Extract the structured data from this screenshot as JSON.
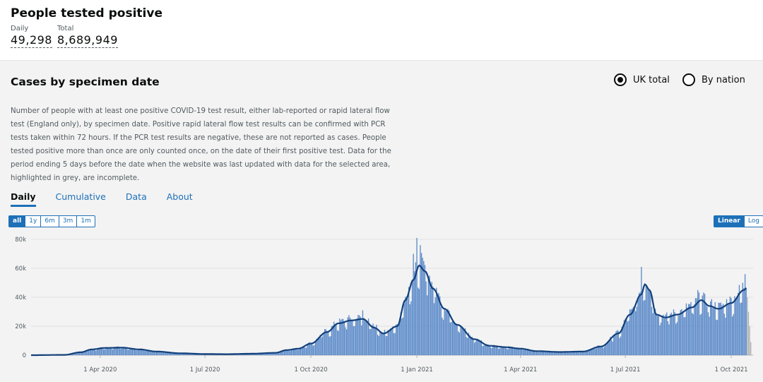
{
  "headline": {
    "title": "People tested positive",
    "daily_label": "Daily",
    "daily_value": "49,298",
    "total_label": "Total",
    "total_value": "8,689,949"
  },
  "card": {
    "title": "Cases by specimen date",
    "radio_uk": "UK total",
    "radio_nation": "By nation",
    "selected": "UK total",
    "description": "Number of people with at least one positive COVID-19 test result, either lab-reported or rapid lateral flow test (England only), by specimen date. Positive rapid lateral flow test results can be confirmed with PCR tests taken within 72 hours. If the PCR test results are negative, these are not reported as cases. People tested positive more than once are only counted once, on the date of their first positive test. Data for the period ending 5 days before the date when the website was last updated with data for the selected area, highlighted in grey, are incomplete.",
    "tabs": [
      "Daily",
      "Cumulative",
      "Data",
      "About"
    ],
    "active_tab": "Daily",
    "ranges": [
      "all",
      "1y",
      "6m",
      "3m",
      "1m"
    ],
    "active_range": "all",
    "scales": [
      "Linear",
      "Log"
    ],
    "active_scale": "Linear"
  },
  "colors": {
    "bar": "#5b8ac9",
    "bar_incomplete": "#b1b4b6",
    "line": "#12407a",
    "accent": "#1d70b8"
  },
  "chart_data": {
    "type": "bar",
    "title": "",
    "xlabel": "",
    "ylabel": "",
    "ylim": [
      0,
      80000
    ],
    "y_ticks": [
      0,
      20000,
      40000,
      60000,
      80000
    ],
    "y_tick_labels": [
      "0",
      "20k",
      "40k",
      "60k",
      "80k"
    ],
    "x_range": [
      "2020-02-01",
      "2021-10-20"
    ],
    "x_ticks": [
      "2020-04-01",
      "2020-07-01",
      "2020-10-01",
      "2021-01-01",
      "2021-04-01",
      "2021-07-01",
      "2021-10-01"
    ],
    "x_tick_labels": [
      "1 Apr 2020",
      "1 Jul 2020",
      "1 Oct 2020",
      "1 Jan 2021",
      "1 Apr 2021",
      "1 Jul 2021",
      "1 Oct 2021"
    ],
    "grid": true,
    "series": [
      {
        "kind": "bars",
        "values_daily_by_key_dates": [
          [
            "2020-02-01",
            0
          ],
          [
            "2020-03-01",
            200
          ],
          [
            "2020-03-15",
            2000
          ],
          [
            "2020-03-25",
            4000
          ],
          [
            "2020-04-05",
            5000
          ],
          [
            "2020-04-20",
            5200
          ],
          [
            "2020-05-05",
            4000
          ],
          [
            "2020-05-20",
            2500
          ],
          [
            "2020-06-10",
            1300
          ],
          [
            "2020-07-01",
            800
          ],
          [
            "2020-07-20",
            700
          ],
          [
            "2020-08-10",
            1000
          ],
          [
            "2020-08-31",
            1600
          ],
          [
            "2020-09-10",
            3500
          ],
          [
            "2020-09-20",
            4500
          ],
          [
            "2020-10-01",
            8000
          ],
          [
            "2020-10-15",
            16000
          ],
          [
            "2020-10-25",
            22000
          ],
          [
            "2020-11-05",
            24000
          ],
          [
            "2020-11-15",
            25000
          ],
          [
            "2020-11-25",
            19000
          ],
          [
            "2020-12-03",
            15000
          ],
          [
            "2020-12-15",
            20000
          ],
          [
            "2020-12-22",
            38000
          ],
          [
            "2020-12-29",
            52000
          ],
          [
            "2021-01-03",
            62000
          ],
          [
            "2021-01-08",
            58000
          ],
          [
            "2021-01-15",
            46000
          ],
          [
            "2021-01-25",
            32000
          ],
          [
            "2021-02-05",
            21000
          ],
          [
            "2021-02-20",
            11000
          ],
          [
            "2021-03-05",
            6500
          ],
          [
            "2021-03-20",
            5500
          ],
          [
            "2021-04-01",
            4500
          ],
          [
            "2021-04-15",
            2800
          ],
          [
            "2021-05-05",
            2200
          ],
          [
            "2021-05-25",
            2500
          ],
          [
            "2021-06-10",
            6000
          ],
          [
            "2021-06-25",
            15000
          ],
          [
            "2021-07-05",
            28000
          ],
          [
            "2021-07-15",
            42000
          ],
          [
            "2021-07-18",
            49000
          ],
          [
            "2021-07-22",
            45000
          ],
          [
            "2021-07-28",
            28000
          ],
          [
            "2021-08-05",
            26000
          ],
          [
            "2021-08-15",
            28000
          ],
          [
            "2021-08-28",
            33000
          ],
          [
            "2021-09-05",
            38000
          ],
          [
            "2021-09-12",
            34000
          ],
          [
            "2021-09-20",
            32000
          ],
          [
            "2021-10-01",
            36000
          ],
          [
            "2021-10-12",
            45000
          ],
          [
            "2021-10-16",
            48000
          ]
        ],
        "spikes": [
          [
            "2021-01-01",
            81000
          ],
          [
            "2021-01-04",
            76000
          ],
          [
            "2021-07-15",
            61000
          ],
          [
            "2020-12-29",
            70000
          ],
          [
            "2021-10-13",
            56000
          ],
          [
            "2020-11-15",
            31000
          ],
          [
            "2021-09-02",
            45000
          ]
        ]
      },
      {
        "kind": "incomplete",
        "values": [
          [
            "2021-10-15",
            40000
          ],
          [
            "2021-10-16",
            30000
          ],
          [
            "2021-10-17",
            20000
          ],
          [
            "2021-10-18",
            9000
          ]
        ]
      }
    ]
  }
}
